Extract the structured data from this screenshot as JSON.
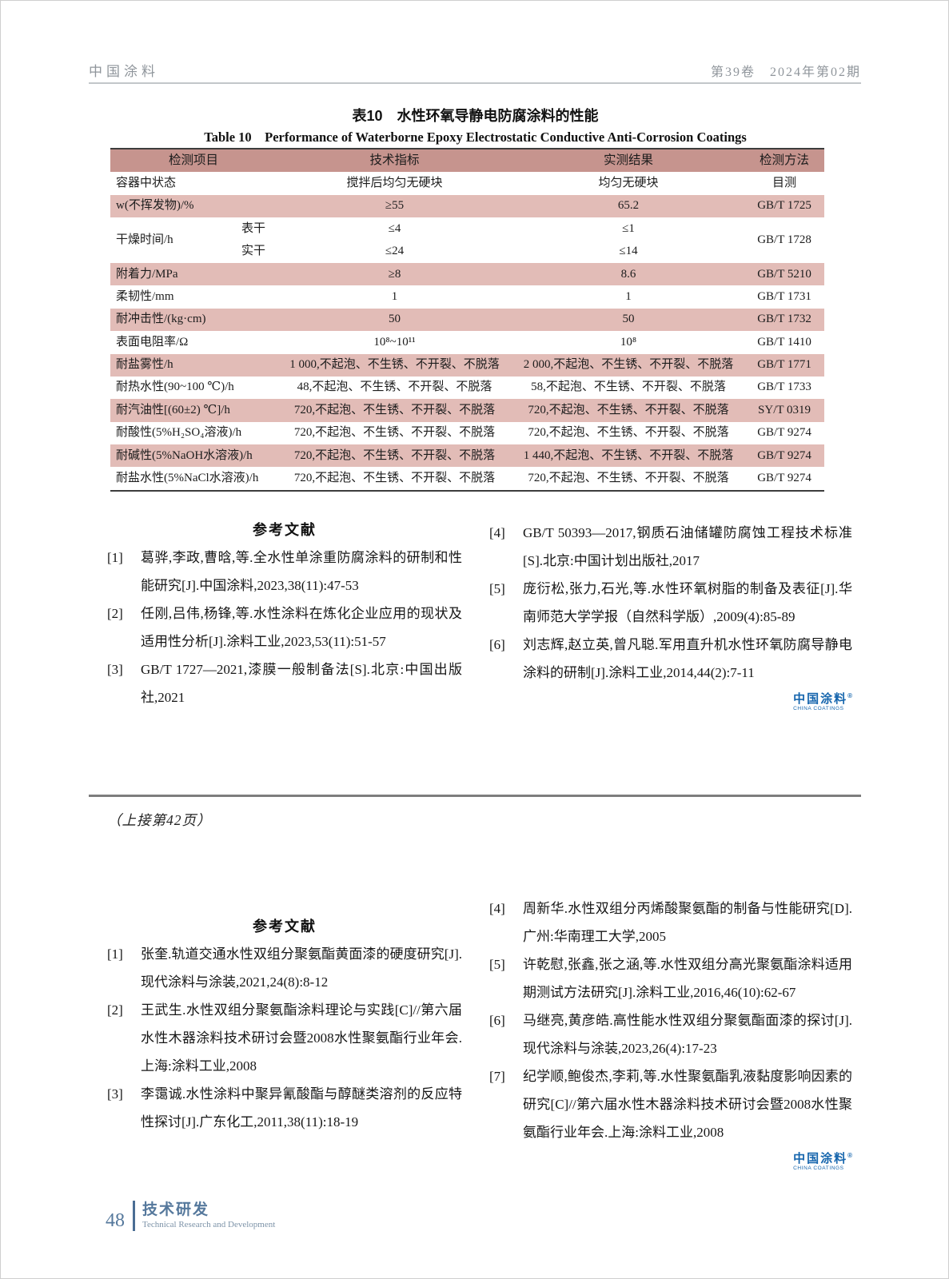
{
  "header": {
    "journal": "中国涂料",
    "issue": "第39卷　2024年第02期"
  },
  "table": {
    "title_cn": "表10　水性环氧导静电防腐涂料的性能",
    "title_en": "Table 10　Performance of Waterborne Epoxy Electrostatic Conductive Anti-Corrosion Coatings",
    "columns": [
      "检测项目",
      "技术指标",
      "实测结果",
      "检测方法"
    ],
    "rows": [
      {
        "item": "容器中状态",
        "spec": "搅拌后均匀无硬块",
        "result": "均匀无硬块",
        "method": "目测",
        "shade": false
      },
      {
        "item": "w(不挥发物)/%",
        "spec": "≥55",
        "result": "65.2",
        "method": "GB/T 1725",
        "shade": true
      },
      {
        "item": "干燥时间/h",
        "subs": [
          {
            "label": "表干",
            "spec": "≤4",
            "result": "≤1"
          },
          {
            "label": "实干",
            "spec": "≤24",
            "result": "≤14"
          }
        ],
        "method": "GB/T 1728",
        "shade": false
      },
      {
        "item": "附着力/MPa",
        "spec": "≥8",
        "result": "8.6",
        "method": "GB/T 5210",
        "shade": true
      },
      {
        "item": "柔韧性/mm",
        "spec": "1",
        "result": "1",
        "method": "GB/T 1731",
        "shade": false
      },
      {
        "item": "耐冲击性/(kg·cm)",
        "spec": "50",
        "result": "50",
        "method": "GB/T 1732",
        "shade": true
      },
      {
        "item": "表面电阻率/Ω",
        "spec": "10⁸~10¹¹",
        "result": "10⁸",
        "method": "GB/T 1410",
        "shade": false
      },
      {
        "item": "耐盐雾性/h",
        "spec": "1 000,不起泡、不生锈、不开裂、不脱落",
        "result": "2 000,不起泡、不生锈、不开裂、不脱落",
        "method": "GB/T 1771",
        "shade": true
      },
      {
        "item": "耐热水性(90~100 ℃)/h",
        "spec": "48,不起泡、不生锈、不开裂、不脱落",
        "result": "58,不起泡、不生锈、不开裂、不脱落",
        "method": "GB/T 1733",
        "shade": false
      },
      {
        "item": "耐汽油性[(60±2) ℃]/h",
        "spec": "720,不起泡、不生锈、不开裂、不脱落",
        "result": "720,不起泡、不生锈、不开裂、不脱落",
        "method": "SY/T 0319",
        "shade": true
      },
      {
        "item": "耐酸性(5%H₂SO₄溶液)/h",
        "spec": "720,不起泡、不生锈、不开裂、不脱落",
        "result": "720,不起泡、不生锈、不开裂、不脱落",
        "method": "GB/T 9274",
        "shade": false
      },
      {
        "item": "耐碱性(5%NaOH水溶液)/h",
        "spec": "720,不起泡、不生锈、不开裂、不脱落",
        "result": "1 440,不起泡、不生锈、不开裂、不脱落",
        "method": "GB/T 9274",
        "shade": true
      },
      {
        "item": "耐盐水性(5%NaCl水溶液)/h",
        "spec": "720,不起泡、不生锈、不开裂、不脱落",
        "result": "720,不起泡、不生锈、不开裂、不脱落",
        "method": "GB/T 9274",
        "shade": false
      }
    ]
  },
  "references_top": {
    "heading": "参考文献",
    "left": [
      {
        "num": "[1]",
        "text": "葛骅,李政,曹晗,等.全水性单涂重防腐涂料的研制和性能研究[J].中国涂料,2023,38(11):47-53"
      },
      {
        "num": "[2]",
        "text": "任刚,吕伟,杨锋,等.水性涂料在炼化企业应用的现状及适用性分析[J].涂料工业,2023,53(11):51-57"
      },
      {
        "num": "[3]",
        "text": "GB/T 1727—2021,漆膜一般制备法[S].北京:中国出版社,2021"
      }
    ],
    "right": [
      {
        "num": "[4]",
        "text": "GB/T 50393—2017,钢质石油储罐防腐蚀工程技术标准[S].北京:中国计划出版社,2017"
      },
      {
        "num": "[5]",
        "text": "庞衍松,张力,石光,等.水性环氧树脂的制备及表征[J].华南师范大学学报（自然科学版）,2009(4):85-89"
      },
      {
        "num": "[6]",
        "text": "刘志辉,赵立英,曾凡聪.军用直升机水性环氧防腐导静电涂料的研制[J].涂料工业,2014,44(2):7-11"
      }
    ]
  },
  "continuation": "（上接第42页）",
  "references_bottom": {
    "heading": "参考文献",
    "left": [
      {
        "num": "[1]",
        "text": "张奎.轨道交通水性双组分聚氨酯黄面漆的硬度研究[J].现代涂料与涂装,2021,24(8):8-12"
      },
      {
        "num": "[2]",
        "text": "王武生.水性双组分聚氨酯涂料理论与实践[C]//第六届水性木器涂料技术研讨会暨2008水性聚氨酯行业年会.上海:涂料工业,2008"
      },
      {
        "num": "[3]",
        "text": "李霭诚.水性涂料中聚异氰酸酯与醇醚类溶剂的反应特性探讨[J].广东化工,2011,38(11):18-19"
      }
    ],
    "right": [
      {
        "num": "[4]",
        "text": "周新华.水性双组分丙烯酸聚氨酯的制备与性能研究[D].广州:华南理工大学,2005"
      },
      {
        "num": "[5]",
        "text": "许乾慰,张鑫,张之涵,等.水性双组分高光聚氨酯涂料适用期测试方法研究[J].涂料工业,2016,46(10):62-67"
      },
      {
        "num": "[6]",
        "text": "马继亮,黄彦皓.高性能水性双组分聚氨酯面漆的探讨[J].现代涂料与涂装,2023,26(4):17-23"
      },
      {
        "num": "[7]",
        "text": "纪学顺,鲍俊杰,李莉,等.水性聚氨酯乳液黏度影响因素的研究[C]//第六届水性木器涂料技术研讨会暨2008水性聚氨酯行业年会.上海:涂料工业,2008"
      }
    ]
  },
  "logo": {
    "cn": "中国涂料",
    "mark": "®",
    "en": "CHINA COATINGS"
  },
  "footer": {
    "page_number": "48",
    "section_cn": "技术研发",
    "section_en": "Technical Research and Development"
  },
  "colors": {
    "table_header_pink": "#c6948e",
    "table_row_pink": "#e2bcb7",
    "logo_blue": "#1565ad",
    "footer_blue": "#55789c",
    "table_border_dark": "#3d3d3d"
  }
}
